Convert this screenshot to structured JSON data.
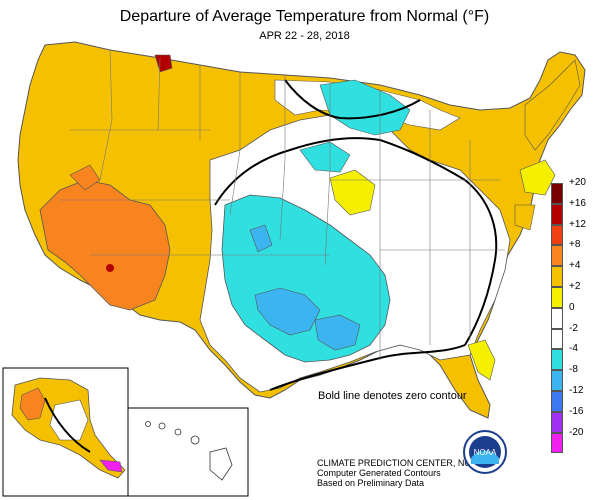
{
  "header": {
    "title": "Departure of Average Temperature from Normal (°F)",
    "dates": "APR 22 - 28, 2018"
  },
  "legend": {
    "items": [
      {
        "label": "+20",
        "color": "#7a0000"
      },
      {
        "label": "+16",
        "color": "#b40000"
      },
      {
        "label": "+12",
        "color": "#ee4010"
      },
      {
        "label": "+8",
        "color": "#f88420"
      },
      {
        "label": "+4",
        "color": "#f5c000"
      },
      {
        "label": "+2",
        "color": "#f5f000"
      },
      {
        "label": "0",
        "color": "#ffffff"
      },
      {
        "label": "-2",
        "color": "#ffffff"
      },
      {
        "label": "-4",
        "color": "#30e0e0"
      },
      {
        "label": "-8",
        "color": "#3cb4f0"
      },
      {
        "label": "-12",
        "color": "#3c78f0"
      },
      {
        "label": "-16",
        "color": "#a030f0"
      },
      {
        "label": "-20",
        "color": "#f020f0"
      }
    ]
  },
  "annotations": {
    "zero_contour_note": "Bold line denotes zero contour"
  },
  "credits": {
    "line1": "CLIMATE PREDICTION CENTER, NOAA",
    "line2": "Computer Generated Contours",
    "line3": "Based on Preliminary Data"
  },
  "logo": {
    "text": "NOAA"
  },
  "colors": {
    "warm_orange": "#f88420",
    "warm_yellow": "#f5c000",
    "light_yellow": "#f5f000",
    "cool_cyan": "#30e0e0",
    "cool_blue": "#3cb4f0",
    "deep_red": "#b40000"
  }
}
